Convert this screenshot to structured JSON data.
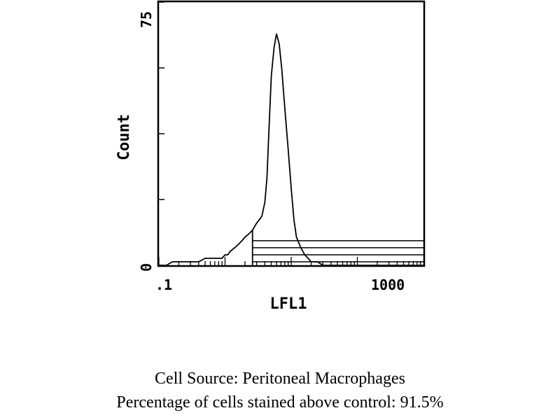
{
  "chart_data": {
    "type": "histogram",
    "xlabel": "LFL1",
    "ylabel": "Count",
    "x_scale": "log",
    "xlim": [
      0.1,
      1000
    ],
    "ylim": [
      0,
      75
    ],
    "x_tick_labels": [
      ".1",
      "1000"
    ],
    "y_tick_labels": [
      "0",
      "75"
    ],
    "y_ticks": [
      0,
      18.75,
      37.5,
      56.25,
      75
    ],
    "series": [
      {
        "x": [
          0.1,
          0.13,
          0.16,
          0.2,
          0.25,
          0.3,
          0.4,
          0.5,
          0.6,
          0.7,
          0.8,
          0.9,
          1.0,
          1.1,
          1.2,
          1.4,
          1.6,
          1.8,
          2.0,
          2.3,
          2.6,
          3.0,
          3.3,
          3.6,
          4.0,
          4.3,
          4.6,
          5.0,
          5.5,
          6.0,
          6.6,
          7.2,
          8.0,
          9.0,
          10,
          11,
          12,
          14,
          16,
          18,
          20,
          22,
          25,
          30,
          40,
          60,
          100,
          200,
          500,
          1000
        ],
        "y": [
          0,
          0,
          1,
          1,
          1,
          1,
          1,
          2,
          2,
          2,
          2,
          2,
          3,
          3,
          4,
          5,
          6,
          7,
          8,
          9,
          10,
          12,
          13,
          14,
          18,
          25,
          38,
          54,
          62,
          66,
          63,
          56,
          45,
          33,
          22,
          13,
          8,
          5,
          3,
          2,
          1,
          1,
          1,
          0,
          0,
          0,
          0,
          0,
          0,
          0
        ]
      }
    ],
    "gate_lines": [
      {
        "from": 2.6,
        "to": 1000,
        "level": 7
      },
      {
        "from": 2.6,
        "to": 1000,
        "level": 5
      },
      {
        "from": 2.6,
        "to": 1000,
        "level": 3
      },
      {
        "from": 2.6,
        "to": 1000,
        "level": 1
      }
    ]
  },
  "caption": {
    "source": "Cell Source:  Peritoneal Macrophages",
    "percentage": "Percentage of cells stained above control:  91.5%"
  }
}
